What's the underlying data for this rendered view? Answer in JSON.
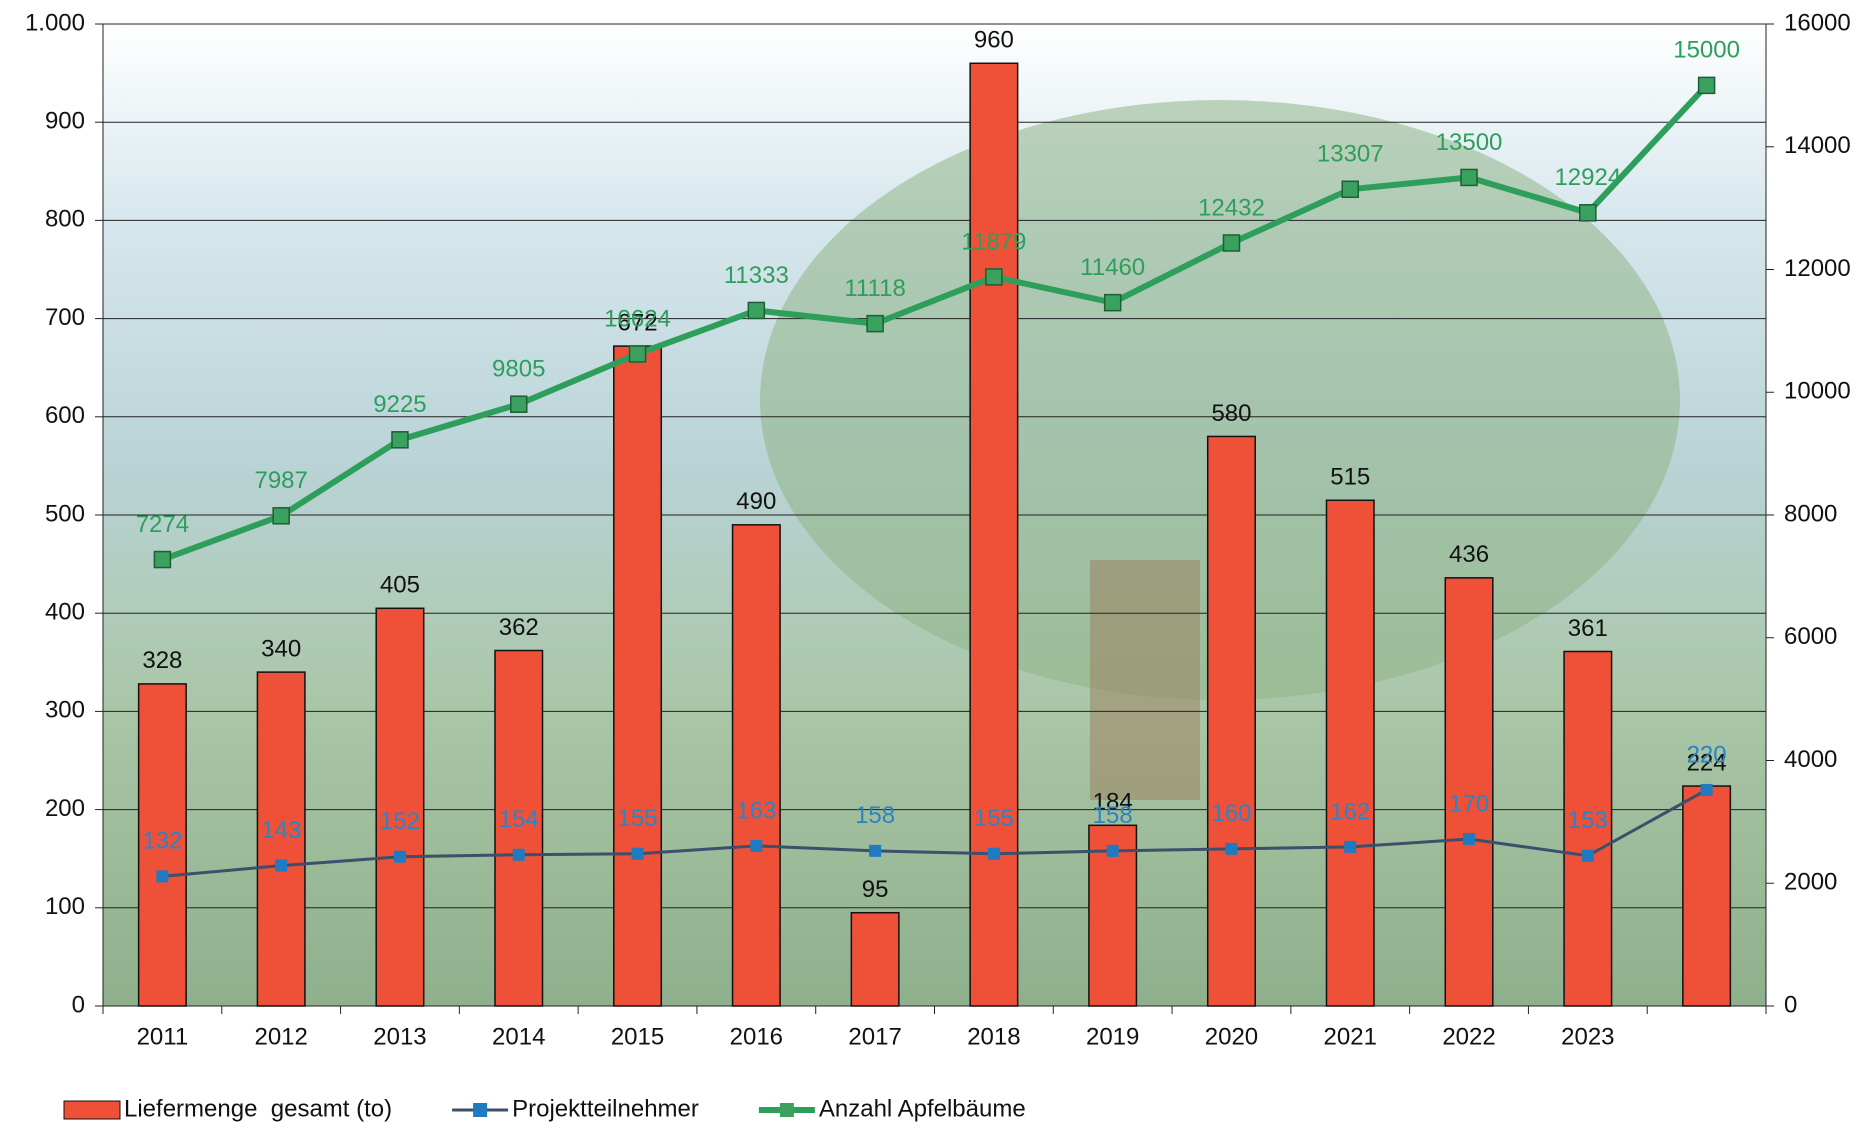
{
  "chart_data": {
    "type": "bar-line",
    "categories": [
      "2011",
      "2012",
      "2013",
      "2014",
      "2015",
      "2016",
      "2017",
      "2018",
      "2019",
      "2020",
      "2021",
      "2022",
      "2023",
      null
    ],
    "series": [
      {
        "name": "Liefermenge  gesamt (to)",
        "type": "bar",
        "color": "#ef5138",
        "values": [
          328,
          340,
          405,
          362,
          672,
          490,
          95,
          960,
          184,
          580,
          515,
          436,
          361,
          224
        ]
      },
      {
        "name": "Projektteilnehmer",
        "type": "line",
        "color": "#3d4f6b",
        "marker_color": "#1f7ac0",
        "label_color": "#2a84c6",
        "values": [
          132,
          143,
          152,
          154,
          155,
          163,
          158,
          155,
          158,
          160,
          162,
          170,
          153,
          220
        ]
      },
      {
        "name": "Anzahl Apfelbäume",
        "type": "line",
        "axis": "y2",
        "color": "#2e9e5b",
        "marker_color": "#3aa15f",
        "label_color": "#2e9e5b",
        "values": [
          7274,
          7987,
          9225,
          9805,
          10624,
          11333,
          11118,
          11879,
          11460,
          12432,
          13307,
          13500,
          12924,
          15000
        ]
      }
    ],
    "ylim": [
      0,
      1000
    ],
    "yticks": [
      0,
      100,
      200,
      300,
      400,
      500,
      600,
      700,
      800,
      900,
      {
        "value": 1000,
        "label": "1.000"
      }
    ],
    "y2lim": [
      0,
      16000
    ],
    "y2ticks": [
      0,
      2000,
      4000,
      6000,
      8000,
      10000,
      12000,
      14000,
      16000
    ],
    "grid": true
  }
}
